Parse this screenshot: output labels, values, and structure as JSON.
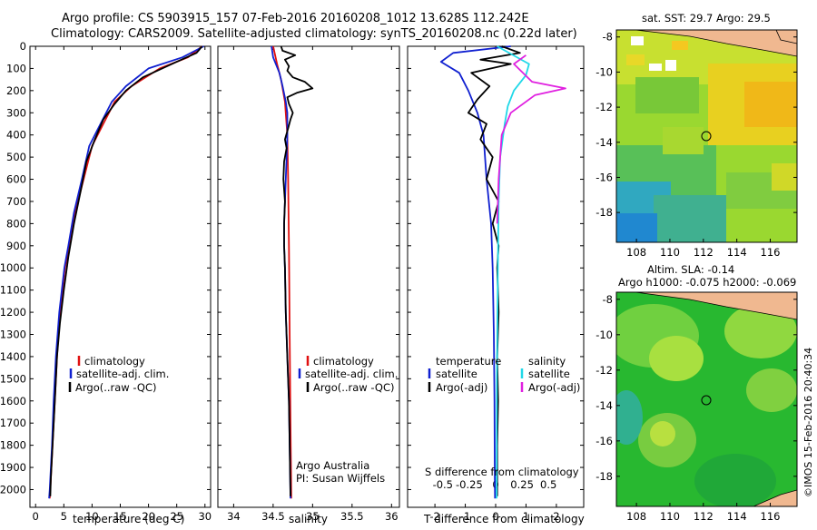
{
  "header": {
    "line1": "Argo profile: CS 5903915_157 07-Feb-2016 20160208_1012 13.628S 112.242E",
    "line2": "Climatology: CARS2009. Satellite-adjusted climatology: synTS_20160208.nc (0.22d later)"
  },
  "colors": {
    "climatology": "#e01010",
    "satellite": "#1020d0",
    "argo": "#000000",
    "sat_salinity": "#20d8e8",
    "argo_salinity": "#e020e0"
  },
  "chart_data": [
    {
      "type": "line",
      "name": "temperature",
      "xlabel": "temperature (deg C)",
      "ylabel": "",
      "xlim": [
        -1,
        31
      ],
      "ylim": [
        0,
        2080
      ],
      "y_inverted": true,
      "xticks": [
        0,
        5,
        10,
        15,
        20,
        25,
        30
      ],
      "xticklabels": [
        "0",
        "5",
        "10",
        "15",
        "20",
        "25",
        "30"
      ],
      "yticks": [
        0,
        100,
        200,
        300,
        400,
        500,
        600,
        700,
        800,
        900,
        1000,
        1100,
        1200,
        1300,
        1400,
        1500,
        1600,
        1700,
        1800,
        1900,
        2000
      ],
      "yticklabels": [
        "0",
        "100",
        "200",
        "300",
        "400",
        "500",
        "600",
        "700",
        "800",
        "900",
        "1000",
        "1100",
        "1200",
        "1300",
        "1400",
        "1500",
        "1600",
        "1700",
        "1800",
        "1900",
        "2000"
      ],
      "legend": [
        "climatology",
        "satellite-adj. clim.",
        "Argo(..raw -QC)"
      ],
      "series": [
        {
          "name": "climatology",
          "color": "#e01010",
          "points": [
            [
              29.5,
              0
            ],
            [
              27,
              50
            ],
            [
              22,
              100
            ],
            [
              17,
              180
            ],
            [
              14,
              250
            ],
            [
              12,
              350
            ],
            [
              10,
              450
            ],
            [
              8.5,
              600
            ],
            [
              7,
              750
            ],
            [
              6,
              900
            ],
            [
              5.2,
              1000
            ],
            [
              4.3,
              1200
            ],
            [
              3.8,
              1400
            ],
            [
              3.4,
              1600
            ],
            [
              3,
              1800
            ],
            [
              2.6,
              2000
            ],
            [
              2.5,
              2040
            ]
          ]
        },
        {
          "name": "satellite-adj. clim.",
          "color": "#1020d0",
          "points": [
            [
              29.8,
              0
            ],
            [
              26,
              50
            ],
            [
              20,
              100
            ],
            [
              16,
              180
            ],
            [
              13.5,
              250
            ],
            [
              11.5,
              350
            ],
            [
              9.5,
              450
            ],
            [
              8.2,
              600
            ],
            [
              6.8,
              750
            ],
            [
              5.8,
              900
            ],
            [
              5.1,
              1000
            ],
            [
              4.2,
              1200
            ],
            [
              3.6,
              1400
            ],
            [
              3.2,
              1600
            ],
            [
              2.9,
              1800
            ],
            [
              2.5,
              2000
            ],
            [
              2.4,
              2040
            ]
          ]
        },
        {
          "name": "Argo(..raw -QC)",
          "color": "#000000",
          "points": [
            [
              29.5,
              0
            ],
            [
              28.5,
              30
            ],
            [
              25,
              70
            ],
            [
              19,
              140
            ],
            [
              16,
              200
            ],
            [
              14,
              260
            ],
            [
              12,
              330
            ],
            [
              10.5,
              420
            ],
            [
              9,
              520
            ],
            [
              8,
              650
            ],
            [
              6.8,
              800
            ],
            [
              5.8,
              950
            ],
            [
              5,
              1100
            ],
            [
              4.3,
              1250
            ],
            [
              3.8,
              1400
            ],
            [
              3.4,
              1600
            ],
            [
              3,
              1800
            ],
            [
              2.7,
              1950
            ],
            [
              2.6,
              2030
            ]
          ]
        }
      ]
    },
    {
      "type": "line",
      "name": "salinity",
      "xlabel": "salinity",
      "xlim": [
        33.8,
        36.1
      ],
      "ylim": [
        0,
        2080
      ],
      "y_inverted": true,
      "xticks": [
        34,
        34.5,
        35,
        35.5,
        36
      ],
      "xticklabels": [
        "34",
        "34.5",
        "35",
        "35.5",
        "36"
      ],
      "legend": [
        "climatology",
        "satellite-adj. clim.",
        "Argo(..raw -QC)"
      ],
      "annotations": [
        "Argo Australia",
        "PI: Susan Wijffels"
      ],
      "series": [
        {
          "name": "climatology",
          "color": "#e01010",
          "points": [
            [
              34.5,
              0
            ],
            [
              34.55,
              80
            ],
            [
              34.6,
              150
            ],
            [
              34.65,
              250
            ],
            [
              34.68,
              400
            ],
            [
              34.69,
              600
            ],
            [
              34.7,
              900
            ],
            [
              34.71,
              1300
            ],
            [
              34.72,
              1700
            ],
            [
              34.73,
              2040
            ]
          ]
        },
        {
          "name": "satellite-adj. clim.",
          "color": "#1020d0",
          "points": [
            [
              34.48,
              0
            ],
            [
              34.5,
              50
            ],
            [
              34.58,
              120
            ],
            [
              34.62,
              180
            ],
            [
              34.66,
              250
            ],
            [
              34.68,
              300
            ],
            [
              34.68,
              400
            ],
            [
              34.67,
              500
            ],
            [
              34.66,
              600
            ],
            [
              34.65,
              700
            ],
            [
              34.64,
              800
            ],
            [
              34.64,
              900
            ],
            [
              34.65,
              1000
            ],
            [
              34.66,
              1200
            ],
            [
              34.68,
              1400
            ],
            [
              34.7,
              1600
            ],
            [
              34.71,
              1800
            ],
            [
              34.72,
              2040
            ]
          ]
        },
        {
          "name": "Argo(..raw -QC)",
          "color": "#000000",
          "points": [
            [
              34.6,
              0
            ],
            [
              34.62,
              20
            ],
            [
              34.78,
              40
            ],
            [
              34.65,
              60
            ],
            [
              34.7,
              90
            ],
            [
              34.68,
              110
            ],
            [
              34.75,
              140
            ],
            [
              34.9,
              160
            ],
            [
              35.0,
              190
            ],
            [
              34.8,
              210
            ],
            [
              34.68,
              230
            ],
            [
              34.7,
              260
            ],
            [
              34.75,
              300
            ],
            [
              34.72,
              330
            ],
            [
              34.69,
              370
            ],
            [
              34.65,
              420
            ],
            [
              34.67,
              460
            ],
            [
              34.64,
              520
            ],
            [
              34.63,
              600
            ],
            [
              34.65,
              700
            ],
            [
              34.64,
              800
            ],
            [
              34.64,
              900
            ],
            [
              34.65,
              1000
            ],
            [
              34.66,
              1200
            ],
            [
              34.68,
              1400
            ],
            [
              34.7,
              1600
            ],
            [
              34.71,
              1800
            ],
            [
              34.72,
              2030
            ]
          ]
        }
      ]
    },
    {
      "type": "line",
      "name": "difference",
      "xlabel": "T difference from climatology",
      "xlim": [
        -2.9,
        2.9
      ],
      "ylim": [
        0,
        2080
      ],
      "y_inverted": true,
      "xticks": [
        -2,
        -1,
        0,
        1,
        2
      ],
      "xticklabels": [
        "-2",
        "-1",
        "0",
        "1",
        "2"
      ],
      "top_scale_label": "S difference from climatology",
      "top_scale_ticks": [
        -0.5,
        -0.25,
        0,
        0.25,
        0.5
      ],
      "top_scale_ticklabels": [
        "-0.5",
        "-0.25",
        "0",
        "0.25",
        "0.5"
      ],
      "legend_temperature_title": "temperature",
      "legend_salinity_title": "salinity",
      "legend_entries": [
        "satellite",
        "Argo(-adj)",
        "satellite",
        "Argo(-adj)"
      ],
      "series": [
        {
          "name": "T satellite",
          "color": "#1020d0",
          "points": [
            [
              0.5,
              0
            ],
            [
              -1.4,
              30
            ],
            [
              -1.8,
              70
            ],
            [
              -1.2,
              120
            ],
            [
              -0.9,
              200
            ],
            [
              -0.6,
              300
            ],
            [
              -0.4,
              400
            ],
            [
              -0.3,
              600
            ],
            [
              -0.15,
              800
            ],
            [
              -0.1,
              1000
            ],
            [
              -0.06,
              1300
            ],
            [
              -0.04,
              1600
            ],
            [
              -0.03,
              1900
            ],
            [
              -0.02,
              2040
            ]
          ]
        },
        {
          "name": "T Argo(-adj)",
          "color": "#000000",
          "points": [
            [
              0.2,
              0
            ],
            [
              0.8,
              30
            ],
            [
              -0.5,
              60
            ],
            [
              0.5,
              80
            ],
            [
              -0.8,
              120
            ],
            [
              -0.2,
              180
            ],
            [
              -0.6,
              240
            ],
            [
              -0.9,
              300
            ],
            [
              -0.3,
              350
            ],
            [
              -0.5,
              420
            ],
            [
              -0.1,
              500
            ],
            [
              -0.3,
              600
            ],
            [
              0.1,
              700
            ],
            [
              -0.1,
              800
            ],
            [
              0.1,
              900
            ],
            [
              0.05,
              1000
            ],
            [
              0.1,
              1200
            ],
            [
              0.05,
              1400
            ],
            [
              0.08,
              1600
            ],
            [
              0.05,
              1800
            ],
            [
              0.05,
              2030
            ]
          ]
        },
        {
          "name": "S satellite",
          "color": "#20d8e8",
          "points": [
            [
              0.05,
              0
            ],
            [
              1.1,
              80
            ],
            [
              1.0,
              130
            ],
            [
              0.6,
              200
            ],
            [
              0.4,
              270
            ],
            [
              0.3,
              350
            ],
            [
              0.15,
              500
            ],
            [
              0.1,
              700
            ],
            [
              0.08,
              900
            ],
            [
              0.06,
              1200
            ],
            [
              0.04,
              1500
            ],
            [
              0.03,
              2040
            ]
          ]
        },
        {
          "name": "S Argo(-adj)",
          "color": "#e020e0",
          "points": [
            [
              1.0,
              40
            ],
            [
              0.6,
              80
            ],
            [
              1.2,
              160
            ],
            [
              2.3,
              190
            ],
            [
              1.3,
              220
            ],
            [
              0.5,
              300
            ],
            [
              0.2,
              400
            ],
            [
              0.1,
              600
            ],
            [
              0.05,
              800
            ]
          ]
        }
      ]
    }
  ],
  "maps": {
    "sst_title": "sat. SST: 29.7  Argo: 29.5",
    "sla_title_line1": "Altim. SLA: -0.14",
    "sla_title_line2": "Argo h1000: -0.075  h2000: -0.069",
    "lat_ticks": [
      "-8",
      "-10",
      "-12",
      "-14",
      "-16",
      "-18"
    ],
    "lon_ticks": [
      "108",
      "110",
      "112",
      "114",
      "116"
    ],
    "float_lon": 112.242,
    "float_lat": -13.628
  },
  "watermark": "©IMOS 15-Feb-2016 20:40:34"
}
